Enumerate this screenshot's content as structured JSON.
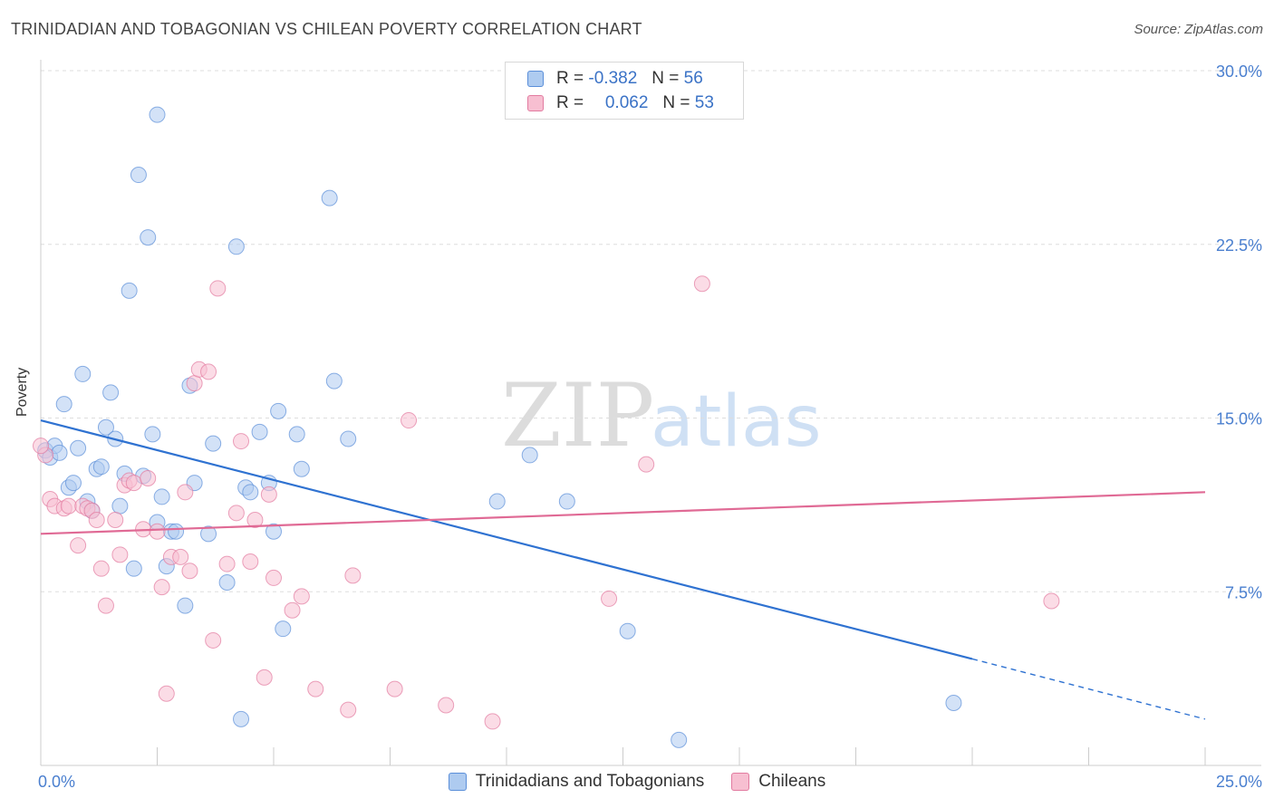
{
  "chart_data": {
    "type": "scatter",
    "title": "TRINIDADIAN AND TOBAGONIAN VS CHILEAN POVERTY CORRELATION CHART",
    "source": "Source: ZipAtlas.com",
    "ylabel": "Poverty",
    "watermark": {
      "zip": "ZIP",
      "atlas": "atlas"
    },
    "xlim": [
      0,
      25
    ],
    "ylim": [
      0,
      30
    ],
    "x_tick_labels": [
      "0.0%",
      "25.0%"
    ],
    "y_ticks": [
      7.5,
      15,
      22.5,
      30
    ],
    "y_tick_labels": [
      "7.5%",
      "15.0%",
      "22.5%",
      "30.0%"
    ],
    "grid": true,
    "legend_position": "top-center",
    "series": [
      {
        "name": "Trinidadians and Tobagonians",
        "color": "#5b8fd9",
        "fill": "#aecbf0",
        "R_label": "R =",
        "R": "-0.382",
        "N_label": "N =",
        "N": "56",
        "trend": {
          "x0": 0,
          "y0": 14.9,
          "x1": 20.0,
          "y1": 4.6,
          "dash_to_x": 25.0,
          "dash_to_y": 2.0
        },
        "points": [
          [
            0.1,
            13.6
          ],
          [
            0.2,
            13.3
          ],
          [
            0.3,
            13.8
          ],
          [
            0.4,
            13.5
          ],
          [
            0.5,
            15.6
          ],
          [
            0.6,
            12.0
          ],
          [
            0.7,
            12.2
          ],
          [
            0.8,
            13.7
          ],
          [
            0.9,
            16.9
          ],
          [
            1.0,
            11.4
          ],
          [
            1.1,
            11.0
          ],
          [
            1.2,
            12.8
          ],
          [
            1.3,
            12.9
          ],
          [
            1.4,
            14.6
          ],
          [
            1.5,
            16.1
          ],
          [
            1.6,
            14.1
          ],
          [
            1.7,
            11.2
          ],
          [
            1.8,
            12.6
          ],
          [
            1.9,
            20.5
          ],
          [
            2.0,
            8.5
          ],
          [
            2.1,
            25.5
          ],
          [
            2.2,
            12.5
          ],
          [
            2.3,
            22.8
          ],
          [
            2.4,
            14.3
          ],
          [
            2.5,
            10.5
          ],
          [
            2.5,
            28.1
          ],
          [
            2.6,
            11.6
          ],
          [
            2.7,
            8.6
          ],
          [
            2.8,
            10.1
          ],
          [
            2.9,
            10.1
          ],
          [
            3.1,
            6.9
          ],
          [
            3.2,
            16.4
          ],
          [
            3.3,
            12.2
          ],
          [
            3.6,
            10.0
          ],
          [
            3.7,
            13.9
          ],
          [
            4.0,
            7.9
          ],
          [
            4.2,
            22.4
          ],
          [
            4.3,
            2.0
          ],
          [
            4.4,
            12.0
          ],
          [
            4.5,
            11.8
          ],
          [
            4.7,
            14.4
          ],
          [
            4.9,
            12.2
          ],
          [
            5.0,
            10.1
          ],
          [
            5.1,
            15.3
          ],
          [
            5.2,
            5.9
          ],
          [
            5.5,
            14.3
          ],
          [
            5.6,
            12.8
          ],
          [
            6.2,
            24.5
          ],
          [
            6.3,
            16.6
          ],
          [
            6.6,
            14.1
          ],
          [
            9.8,
            11.4
          ],
          [
            10.5,
            13.4
          ],
          [
            11.3,
            11.4
          ],
          [
            12.6,
            5.8
          ],
          [
            13.7,
            1.1
          ],
          [
            19.6,
            2.7
          ]
        ]
      },
      {
        "name": "Chileans",
        "color": "#e27ba0",
        "fill": "#f7bfd1",
        "R_label": "R =",
        "R": "0.062",
        "N_label": "N =",
        "N": "53",
        "trend": {
          "x0": 0,
          "y0": 10.0,
          "x1": 25.0,
          "y1": 11.8
        },
        "points": [
          [
            0.1,
            13.4
          ],
          [
            0.2,
            11.5
          ],
          [
            0.3,
            11.2
          ],
          [
            0.5,
            11.1
          ],
          [
            0.6,
            11.2
          ],
          [
            0.8,
            9.5
          ],
          [
            0.9,
            11.2
          ],
          [
            1.0,
            11.1
          ],
          [
            1.1,
            11.0
          ],
          [
            1.2,
            10.6
          ],
          [
            1.3,
            8.5
          ],
          [
            1.4,
            6.9
          ],
          [
            1.6,
            10.6
          ],
          [
            1.7,
            9.1
          ],
          [
            1.8,
            12.1
          ],
          [
            1.9,
            12.3
          ],
          [
            2.0,
            12.2
          ],
          [
            2.2,
            10.2
          ],
          [
            2.3,
            12.4
          ],
          [
            2.5,
            10.1
          ],
          [
            2.6,
            7.7
          ],
          [
            2.7,
            3.1
          ],
          [
            2.8,
            9.0
          ],
          [
            3.0,
            9.0
          ],
          [
            3.1,
            11.8
          ],
          [
            3.2,
            8.4
          ],
          [
            3.3,
            16.5
          ],
          [
            3.4,
            17.1
          ],
          [
            3.6,
            17.0
          ],
          [
            3.7,
            5.4
          ],
          [
            3.8,
            20.6
          ],
          [
            4.0,
            8.7
          ],
          [
            4.2,
            10.9
          ],
          [
            4.3,
            14.0
          ],
          [
            4.5,
            8.8
          ],
          [
            4.6,
            10.6
          ],
          [
            4.8,
            3.8
          ],
          [
            4.9,
            11.7
          ],
          [
            5.0,
            8.1
          ],
          [
            5.4,
            6.7
          ],
          [
            5.6,
            7.3
          ],
          [
            5.9,
            3.3
          ],
          [
            6.6,
            2.4
          ],
          [
            6.7,
            8.2
          ],
          [
            7.6,
            3.3
          ],
          [
            7.9,
            14.9
          ],
          [
            8.7,
            2.6
          ],
          [
            9.7,
            1.9
          ],
          [
            12.2,
            7.2
          ],
          [
            13.0,
            13.0
          ],
          [
            14.2,
            20.8
          ],
          [
            21.7,
            7.1
          ],
          [
            0.0,
            13.8
          ]
        ]
      }
    ]
  }
}
